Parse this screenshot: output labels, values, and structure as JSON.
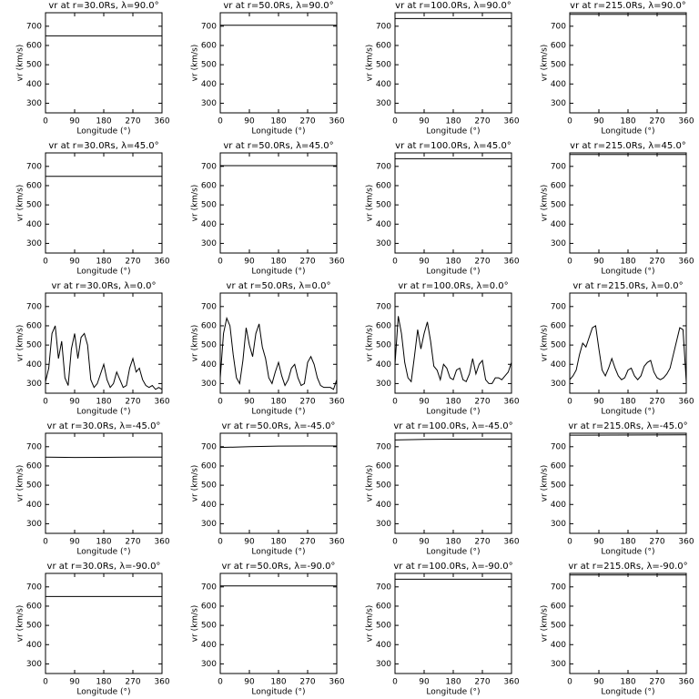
{
  "chart_data": [
    {
      "type": "line",
      "title": "vr at r=30.0Rs, λ=90.0°",
      "xlabel": "Longitude (°)",
      "ylabel": "vr (km/s)",
      "x": [
        0,
        360
      ],
      "values": [
        650,
        650
      ],
      "xlim": [
        0,
        360
      ],
      "ylim": [
        250,
        770
      ],
      "xticks": [
        0,
        90,
        180,
        270,
        360
      ],
      "yticks": [
        300,
        400,
        500,
        600,
        700
      ],
      "color": "#000000"
    },
    {
      "type": "line",
      "title": "vr at r=50.0Rs, λ=90.0°",
      "xlabel": "Longitude (°)",
      "ylabel": "vr (km/s)",
      "x": [
        0,
        360
      ],
      "values": [
        705,
        705
      ],
      "xlim": [
        0,
        360
      ],
      "ylim": [
        250,
        770
      ],
      "xticks": [
        0,
        90,
        180,
        270,
        360
      ],
      "yticks": [
        300,
        400,
        500,
        600,
        700
      ],
      "color": "#000000"
    },
    {
      "type": "line",
      "title": "vr at r=100.0Rs, λ=90.0°",
      "xlabel": "Longitude (°)",
      "ylabel": "vr (km/s)",
      "x": [
        0,
        360
      ],
      "values": [
        740,
        740
      ],
      "xlim": [
        0,
        360
      ],
      "ylim": [
        250,
        770
      ],
      "xticks": [
        0,
        90,
        180,
        270,
        360
      ],
      "yticks": [
        300,
        400,
        500,
        600,
        700
      ],
      "color": "#000000"
    },
    {
      "type": "line",
      "title": "vr at r=215.0Rs, λ=90.0°",
      "xlabel": "Longitude (°)",
      "ylabel": "vr (km/s)",
      "x": [
        0,
        360
      ],
      "values": [
        762,
        762
      ],
      "xlim": [
        0,
        360
      ],
      "ylim": [
        250,
        770
      ],
      "xticks": [
        0,
        90,
        180,
        270,
        360
      ],
      "yticks": [
        300,
        400,
        500,
        600,
        700
      ],
      "color": "#000000"
    },
    {
      "type": "line",
      "title": "vr at r=30.0Rs, λ=45.0°",
      "xlabel": "Longitude (°)",
      "ylabel": "vr (km/s)",
      "x": [
        0,
        360
      ],
      "values": [
        648,
        648
      ],
      "xlim": [
        0,
        360
      ],
      "ylim": [
        250,
        770
      ],
      "xticks": [
        0,
        90,
        180,
        270,
        360
      ],
      "yticks": [
        300,
        400,
        500,
        600,
        700
      ],
      "color": "#000000"
    },
    {
      "type": "line",
      "title": "vr at r=50.0Rs, λ=45.0°",
      "xlabel": "Longitude (°)",
      "ylabel": "vr (km/s)",
      "x": [
        0,
        360
      ],
      "values": [
        704,
        704
      ],
      "xlim": [
        0,
        360
      ],
      "ylim": [
        250,
        770
      ],
      "xticks": [
        0,
        90,
        180,
        270,
        360
      ],
      "yticks": [
        300,
        400,
        500,
        600,
        700
      ],
      "color": "#000000"
    },
    {
      "type": "line",
      "title": "vr at r=100.0Rs, λ=45.0°",
      "xlabel": "Longitude (°)",
      "ylabel": "vr (km/s)",
      "x": [
        0,
        360
      ],
      "values": [
        740,
        740
      ],
      "xlim": [
        0,
        360
      ],
      "ylim": [
        250,
        770
      ],
      "xticks": [
        0,
        90,
        180,
        270,
        360
      ],
      "yticks": [
        300,
        400,
        500,
        600,
        700
      ],
      "color": "#000000"
    },
    {
      "type": "line",
      "title": "vr at r=215.0Rs, λ=45.0°",
      "xlabel": "Longitude (°)",
      "ylabel": "vr (km/s)",
      "x": [
        0,
        360
      ],
      "values": [
        762,
        762
      ],
      "xlim": [
        0,
        360
      ],
      "ylim": [
        250,
        770
      ],
      "xticks": [
        0,
        90,
        180,
        270,
        360
      ],
      "yticks": [
        300,
        400,
        500,
        600,
        700
      ],
      "color": "#000000"
    },
    {
      "type": "line",
      "title": "vr at r=30.0Rs, λ=0.0°",
      "xlabel": "Longitude (°)",
      "ylabel": "vr (km/s)",
      "x": [
        0,
        10,
        20,
        30,
        40,
        50,
        60,
        70,
        80,
        90,
        100,
        110,
        120,
        130,
        140,
        150,
        160,
        170,
        180,
        190,
        200,
        210,
        220,
        230,
        240,
        250,
        260,
        270,
        280,
        290,
        300,
        310,
        320,
        330,
        340,
        350,
        360
      ],
      "values": [
        310,
        380,
        560,
        600,
        430,
        520,
        330,
        290,
        480,
        560,
        430,
        540,
        560,
        500,
        320,
        280,
        300,
        350,
        400,
        320,
        280,
        300,
        360,
        320,
        280,
        290,
        380,
        430,
        360,
        380,
        320,
        290,
        280,
        290,
        270,
        280,
        270
      ],
      "xlim": [
        0,
        360
      ],
      "ylim": [
        250,
        770
      ],
      "xticks": [
        0,
        90,
        180,
        270,
        360
      ],
      "yticks": [
        300,
        400,
        500,
        600,
        700
      ],
      "color": "#000000"
    },
    {
      "type": "line",
      "title": "vr at r=50.0Rs, λ=0.0°",
      "xlabel": "Longitude (°)",
      "ylabel": "vr (km/s)",
      "x": [
        0,
        10,
        20,
        30,
        40,
        50,
        60,
        70,
        80,
        90,
        100,
        110,
        120,
        130,
        140,
        150,
        160,
        170,
        180,
        190,
        200,
        210,
        220,
        230,
        240,
        250,
        260,
        270,
        280,
        290,
        300,
        310,
        320,
        330,
        340,
        350,
        360
      ],
      "values": [
        330,
        560,
        640,
        600,
        450,
        330,
        300,
        420,
        590,
        500,
        440,
        560,
        610,
        490,
        430,
        330,
        300,
        360,
        410,
        340,
        290,
        320,
        380,
        400,
        330,
        290,
        300,
        410,
        440,
        400,
        330,
        290,
        280,
        280,
        280,
        270,
        320
      ],
      "xlim": [
        0,
        360
      ],
      "ylim": [
        250,
        770
      ],
      "xticks": [
        0,
        90,
        180,
        270,
        360
      ],
      "yticks": [
        300,
        400,
        500,
        600,
        700
      ],
      "color": "#000000"
    },
    {
      "type": "line",
      "title": "vr at r=100.0Rs, λ=0.0°",
      "xlabel": "Longitude (°)",
      "ylabel": "vr (km/s)",
      "x": [
        0,
        10,
        20,
        30,
        40,
        50,
        60,
        70,
        80,
        90,
        100,
        110,
        120,
        130,
        140,
        150,
        160,
        170,
        180,
        190,
        200,
        210,
        220,
        230,
        240,
        250,
        260,
        270,
        280,
        290,
        300,
        310,
        320,
        330,
        340,
        350,
        360
      ],
      "values": [
        400,
        650,
        560,
        410,
        330,
        310,
        440,
        580,
        480,
        560,
        620,
        520,
        390,
        370,
        320,
        400,
        380,
        330,
        320,
        370,
        380,
        320,
        310,
        350,
        430,
        350,
        400,
        420,
        320,
        300,
        300,
        330,
        330,
        320,
        340,
        360,
        410
      ],
      "xlim": [
        0,
        360
      ],
      "ylim": [
        250,
        770
      ],
      "xticks": [
        0,
        90,
        180,
        270,
        360
      ],
      "yticks": [
        300,
        400,
        500,
        600,
        700
      ],
      "color": "#000000"
    },
    {
      "type": "line",
      "title": "vr at r=215.0Rs, λ=0.0°",
      "xlabel": "Longitude (°)",
      "ylabel": "vr (km/s)",
      "x": [
        0,
        10,
        20,
        30,
        40,
        50,
        60,
        70,
        80,
        90,
        100,
        110,
        120,
        130,
        140,
        150,
        160,
        170,
        180,
        190,
        200,
        210,
        220,
        230,
        240,
        250,
        260,
        270,
        280,
        290,
        300,
        310,
        320,
        330,
        340,
        350,
        360
      ],
      "values": [
        320,
        340,
        370,
        450,
        510,
        490,
        540,
        590,
        600,
        480,
        370,
        340,
        380,
        430,
        380,
        340,
        320,
        330,
        370,
        380,
        340,
        320,
        340,
        390,
        410,
        420,
        360,
        330,
        320,
        330,
        350,
        380,
        450,
        520,
        590,
        580,
        310
      ],
      "xlim": [
        0,
        360
      ],
      "ylim": [
        250,
        770
      ],
      "xticks": [
        0,
        90,
        180,
        270,
        360
      ],
      "yticks": [
        300,
        400,
        500,
        600,
        700
      ],
      "color": "#000000"
    },
    {
      "type": "line",
      "title": "vr at r=30.0Rs, λ=-45.0°",
      "xlabel": "Longitude (°)",
      "ylabel": "vr (km/s)",
      "x": [
        0,
        90,
        180,
        270,
        360
      ],
      "values": [
        646,
        644,
        645,
        646,
        646
      ],
      "xlim": [
        0,
        360
      ],
      "ylim": [
        250,
        770
      ],
      "xticks": [
        0,
        90,
        180,
        270,
        360
      ],
      "yticks": [
        300,
        400,
        500,
        600,
        700
      ],
      "color": "#000000"
    },
    {
      "type": "line",
      "title": "vr at r=50.0Rs, λ=-45.0°",
      "xlabel": "Longitude (°)",
      "ylabel": "vr (km/s)",
      "x": [
        0,
        90,
        180,
        270,
        360
      ],
      "values": [
        696,
        700,
        703,
        704,
        704
      ],
      "xlim": [
        0,
        360
      ],
      "ylim": [
        250,
        770
      ],
      "xticks": [
        0,
        90,
        180,
        270,
        360
      ],
      "yticks": [
        300,
        400,
        500,
        600,
        700
      ],
      "color": "#000000"
    },
    {
      "type": "line",
      "title": "vr at r=100.0Rs, λ=-45.0°",
      "xlabel": "Longitude (°)",
      "ylabel": "vr (km/s)",
      "x": [
        0,
        90,
        180,
        270,
        360
      ],
      "values": [
        735,
        738,
        739,
        740,
        740
      ],
      "xlim": [
        0,
        360
      ],
      "ylim": [
        250,
        770
      ],
      "xticks": [
        0,
        90,
        180,
        270,
        360
      ],
      "yticks": [
        300,
        400,
        500,
        600,
        700
      ],
      "color": "#000000"
    },
    {
      "type": "line",
      "title": "vr at r=215.0Rs, λ=-45.0°",
      "xlabel": "Longitude (°)",
      "ylabel": "vr (km/s)",
      "x": [
        0,
        360
      ],
      "values": [
        760,
        762
      ],
      "xlim": [
        0,
        360
      ],
      "ylim": [
        250,
        770
      ],
      "xticks": [
        0,
        90,
        180,
        270,
        360
      ],
      "yticks": [
        300,
        400,
        500,
        600,
        700
      ],
      "color": "#000000"
    },
    {
      "type": "line",
      "title": "vr at r=30.0Rs, λ=-90.0°",
      "xlabel": "Longitude (°)",
      "ylabel": "vr (km/s)",
      "x": [
        0,
        360
      ],
      "values": [
        650,
        650
      ],
      "xlim": [
        0,
        360
      ],
      "ylim": [
        250,
        770
      ],
      "xticks": [
        0,
        90,
        180,
        270,
        360
      ],
      "yticks": [
        300,
        400,
        500,
        600,
        700
      ],
      "color": "#000000"
    },
    {
      "type": "line",
      "title": "vr at r=50.0Rs, λ=-90.0°",
      "xlabel": "Longitude (°)",
      "ylabel": "vr (km/s)",
      "x": [
        0,
        360
      ],
      "values": [
        705,
        705
      ],
      "xlim": [
        0,
        360
      ],
      "ylim": [
        250,
        770
      ],
      "xticks": [
        0,
        90,
        180,
        270,
        360
      ],
      "yticks": [
        300,
        400,
        500,
        600,
        700
      ],
      "color": "#000000"
    },
    {
      "type": "line",
      "title": "vr at r=100.0Rs, λ=-90.0°",
      "xlabel": "Longitude (°)",
      "ylabel": "vr (km/s)",
      "x": [
        0,
        360
      ],
      "values": [
        740,
        740
      ],
      "xlim": [
        0,
        360
      ],
      "ylim": [
        250,
        770
      ],
      "xticks": [
        0,
        90,
        180,
        270,
        360
      ],
      "yticks": [
        300,
        400,
        500,
        600,
        700
      ],
      "color": "#000000"
    },
    {
      "type": "line",
      "title": "vr at r=215.0Rs, λ=-90.0°",
      "xlabel": "Longitude (°)",
      "ylabel": "vr (km/s)",
      "x": [
        0,
        360
      ],
      "values": [
        762,
        762
      ],
      "xlim": [
        0,
        360
      ],
      "ylim": [
        250,
        770
      ],
      "xticks": [
        0,
        90,
        180,
        270,
        360
      ],
      "yticks": [
        300,
        400,
        500,
        600,
        700
      ],
      "color": "#000000"
    }
  ]
}
